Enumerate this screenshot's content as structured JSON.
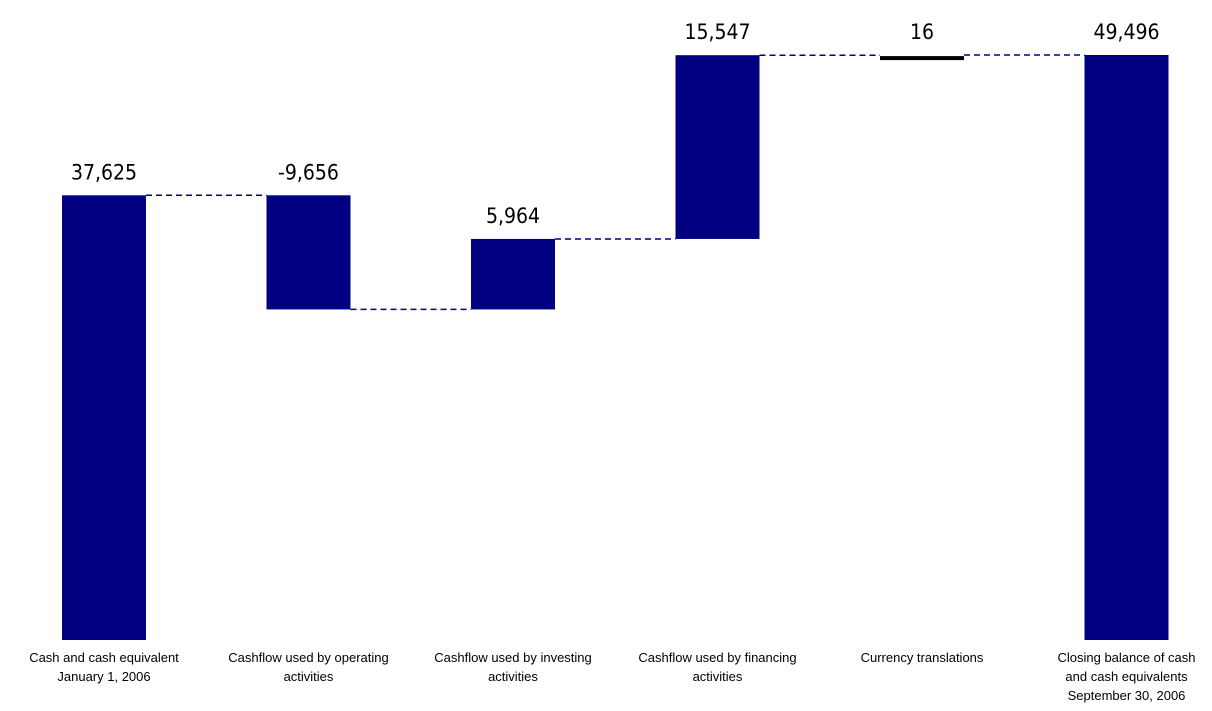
{
  "chart_data": {
    "type": "waterfall",
    "title": "",
    "xlabel": "",
    "ylabel": "",
    "ylim": [
      0,
      52000
    ],
    "grid": false,
    "legend": "none",
    "categories": [
      [
        "Cash and cash equivalent",
        "January 1, 2006"
      ],
      [
        "Cashflow used by operating",
        "activities"
      ],
      [
        "Cashflow used by investing",
        "activities"
      ],
      [
        "Cashflow used by financing",
        "activities"
      ],
      [
        "Currency translations"
      ],
      [
        "Closing balance of cash",
        "and cash equivalents",
        "September 30, 2006"
      ]
    ],
    "values": [
      37625,
      -9656,
      5964,
      15547,
      16,
      49496
    ],
    "value_labels": [
      "37,625",
      "-9,656",
      "5,964",
      "15,547",
      "16",
      "49,496"
    ],
    "kinds": [
      "total",
      "delta",
      "delta",
      "delta",
      "delta",
      "total"
    ],
    "colors": {
      "bar": "#000080",
      "small_delta": "#000000",
      "connector": "#000080"
    }
  }
}
